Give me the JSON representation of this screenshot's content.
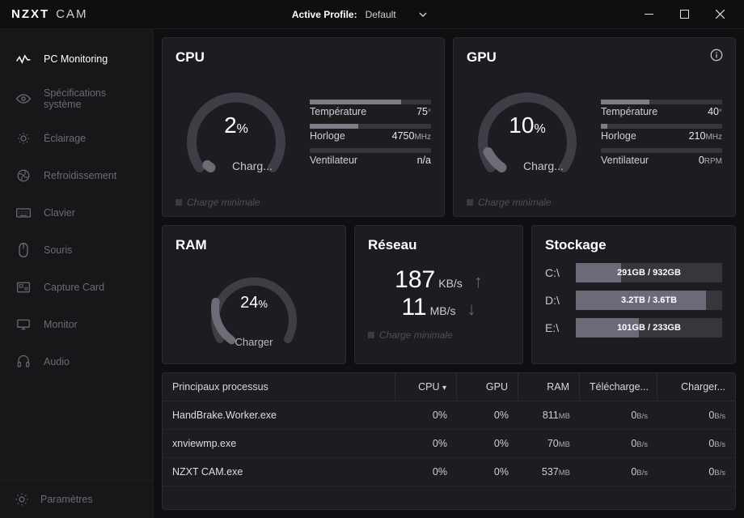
{
  "app": {
    "brand1": "NZXT",
    "brand2": "CAM"
  },
  "titlebar": {
    "profile_label": "Active Profile:",
    "profile_value": "Default"
  },
  "sidebar": {
    "items": [
      {
        "label": "PC Monitoring",
        "icon": "monitoring",
        "active": true
      },
      {
        "label": "Spécifications système",
        "icon": "eye",
        "active": false
      },
      {
        "label": "Éclairage",
        "icon": "light",
        "active": false
      },
      {
        "label": "Refroidissement",
        "icon": "cooling",
        "active": false
      },
      {
        "label": "Clavier",
        "icon": "keyboard",
        "active": false
      },
      {
        "label": "Souris",
        "icon": "mouse",
        "active": false
      },
      {
        "label": "Capture Card",
        "icon": "capture",
        "active": false
      },
      {
        "label": "Monitor",
        "icon": "monitor",
        "active": false
      },
      {
        "label": "Audio",
        "icon": "audio",
        "active": false
      }
    ],
    "settings_label": "Paramètres"
  },
  "cpu": {
    "title": "CPU",
    "load_pct": 2,
    "load_label": "Charg...",
    "arc_color": "#3e3e46",
    "arc_fg": "#6d6d78",
    "charge_min_label": "Charge minimale",
    "stats": [
      {
        "name": "Température",
        "value": "75",
        "unit": "°",
        "bar_pct": 75,
        "bar_color": "#7d7d88"
      },
      {
        "name": "Horloge",
        "value": "4750",
        "unit": "MHz",
        "bar_pct": 40,
        "bar_color": "#7d7d88"
      },
      {
        "name": "Ventilateur",
        "value": "n/a",
        "unit": "",
        "bar_pct": 0,
        "bar_color": "#7d7d88"
      }
    ]
  },
  "gpu": {
    "title": "GPU",
    "load_pct": 10,
    "load_label": "Charg...",
    "arc_color": "#3e3e46",
    "arc_fg": "#6d6d78",
    "charge_min_label": "Charge minimale",
    "stats": [
      {
        "name": "Température",
        "value": "40",
        "unit": "°",
        "bar_pct": 40,
        "bar_color": "#7d7d88"
      },
      {
        "name": "Horloge",
        "value": "210",
        "unit": "MHz",
        "bar_pct": 5,
        "bar_color": "#7d7d88"
      },
      {
        "name": "Ventilateur",
        "value": "0",
        "unit": "RPM",
        "bar_pct": 0,
        "bar_color": "#7d7d88"
      }
    ]
  },
  "ram": {
    "title": "RAM",
    "load_pct": 24,
    "load_label": "Charger"
  },
  "net": {
    "title": "Réseau",
    "down_value": "187",
    "down_unit": "KB/s",
    "up_value": "11",
    "up_unit": "MB/s",
    "charge_min_label": "Charge minimale"
  },
  "storage": {
    "title": "Stockage",
    "drives": [
      {
        "name": "C:\\",
        "used": "291GB",
        "total": "932GB",
        "pct": 31
      },
      {
        "name": "D:\\",
        "used": "3.2TB",
        "total": "3.6TB",
        "pct": 89
      },
      {
        "name": "E:\\",
        "used": "101GB",
        "total": "233GB",
        "pct": 43
      }
    ]
  },
  "processes": {
    "title": "Principaux processus",
    "columns": [
      "CPU",
      "GPU",
      "RAM",
      "Télécharge...",
      "Charger..."
    ],
    "rows": [
      {
        "name": "HandBrake.Worker.exe",
        "cpu": "0%",
        "gpu": "0%",
        "ram": "811",
        "ram_unit": "MB",
        "dl": "0",
        "dl_unit": "B/s",
        "ul": "0",
        "ul_unit": "B/s"
      },
      {
        "name": "xnviewmp.exe",
        "cpu": "0%",
        "gpu": "0%",
        "ram": "70",
        "ram_unit": "MB",
        "dl": "0",
        "dl_unit": "B/s",
        "ul": "0",
        "ul_unit": "B/s"
      },
      {
        "name": "NZXT CAM.exe",
        "cpu": "0%",
        "gpu": "0%",
        "ram": "537",
        "ram_unit": "MB",
        "dl": "0",
        "dl_unit": "B/s",
        "ul": "0",
        "ul_unit": "B/s"
      }
    ]
  },
  "colors": {
    "card_bg": "#1d1d21",
    "border": "#2a2a2f",
    "bg": "#0f0f11"
  }
}
